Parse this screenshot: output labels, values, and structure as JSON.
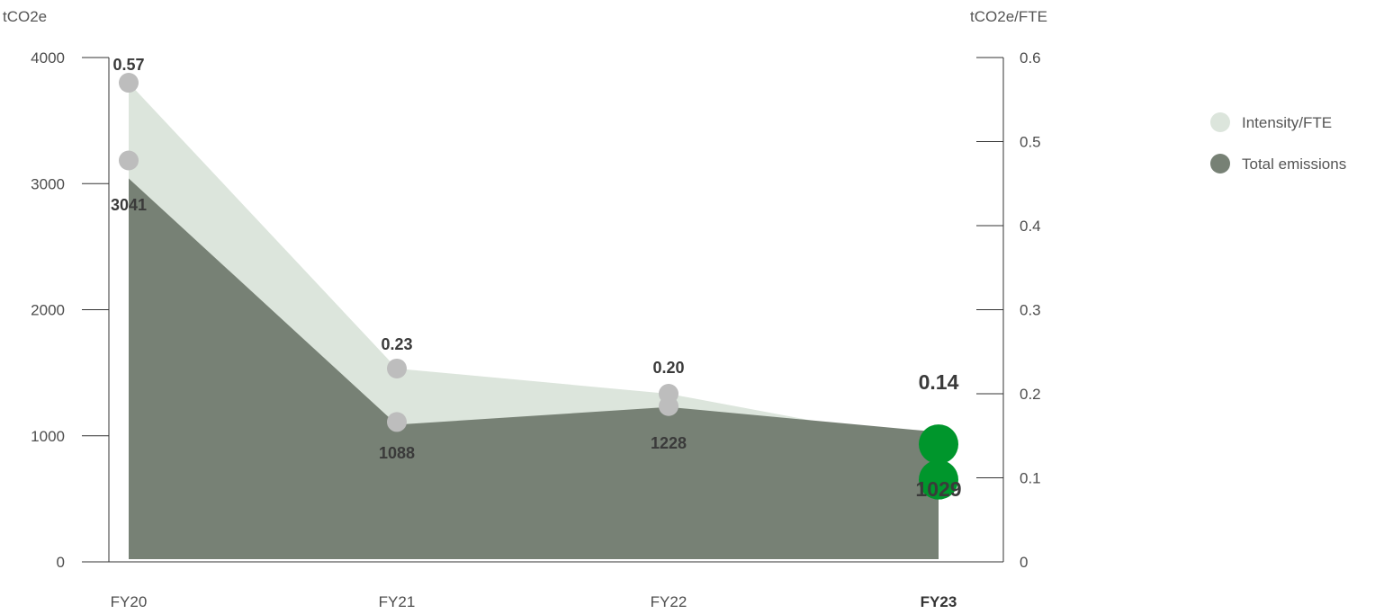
{
  "colors": {
    "intensity_fill": "#dce5dc",
    "total_fill": "#778175",
    "marker": "#bdbdbd",
    "highlight_marker": "#00962c",
    "axis": "#333333"
  },
  "chart_data": {
    "type": "area",
    "categories": [
      "FY20",
      "FY21",
      "FY22",
      "FY23"
    ],
    "highlight_category": "FY23",
    "y_left": {
      "label": "tCO2e",
      "range": [
        0,
        4000
      ],
      "ticks": [
        "0",
        "1000",
        "2000",
        "3000",
        "4000"
      ]
    },
    "y_right": {
      "label": "tCO2e/FTE",
      "range": [
        0,
        0.6
      ],
      "ticks": [
        "0",
        "0.1",
        "0.2",
        "0.3",
        "0.4",
        "0.5",
        "0.6"
      ]
    },
    "series": [
      {
        "name": "Intensity/FTE",
        "axis": "right",
        "values": [
          0.57,
          0.23,
          0.2,
          0.14
        ],
        "labels": [
          "0.57",
          "0.23",
          "0.20",
          "0.14"
        ]
      },
      {
        "name": "Total emissions",
        "axis": "left",
        "values": [
          3041,
          1088,
          1228,
          1029
        ],
        "labels": [
          "3041",
          "1088",
          "1228",
          "1029"
        ]
      }
    ],
    "legend_position": "right",
    "grid": false
  }
}
